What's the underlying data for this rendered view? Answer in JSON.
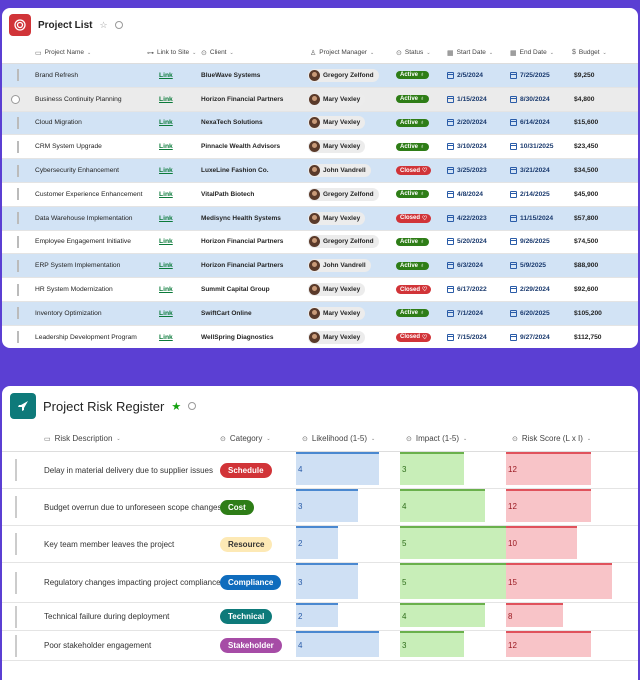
{
  "project_list": {
    "title": "Project List",
    "columns": [
      "Project Name",
      "Link to Site",
      "Client",
      "Project Manager",
      "Status",
      "Start Date",
      "End Date",
      "Budget"
    ],
    "rows": [
      {
        "name": "Brand Refresh",
        "link": "Link",
        "client": "BlueWave Systems",
        "pm": "Gregory Zelfond",
        "status": "Active",
        "start": "2/5/2024",
        "end": "7/25/2025",
        "budget": "$9,250"
      },
      {
        "name": "Business Continuity Planning",
        "link": "Link",
        "client": "Horizon Financial Partners",
        "pm": "Mary Vexley",
        "status": "Active",
        "start": "1/15/2024",
        "end": "8/30/2024",
        "budget": "$4,800"
      },
      {
        "name": "Cloud Migration",
        "link": "Link",
        "client": "NexaTech Solutions",
        "pm": "Mary Vexley",
        "status": "Active",
        "start": "2/20/2024",
        "end": "6/14/2024",
        "budget": "$15,600"
      },
      {
        "name": "CRM System Upgrade",
        "link": "Link",
        "client": "Pinnacle Wealth Advisors",
        "pm": "Mary Vexley",
        "status": "Active",
        "start": "3/10/2024",
        "end": "10/31/2025",
        "budget": "$23,450"
      },
      {
        "name": "Cybersecurity Enhancement",
        "link": "Link",
        "client": "LuxeLine Fashion Co.",
        "pm": "John Vandrell",
        "status": "Closed",
        "start": "3/25/2023",
        "end": "3/21/2024",
        "budget": "$34,500"
      },
      {
        "name": "Customer Experience Enhancement",
        "link": "Link",
        "client": "VitalPath Biotech",
        "pm": "Gregory Zelfond",
        "status": "Active",
        "start": "4/8/2024",
        "end": "2/14/2025",
        "budget": "$45,900"
      },
      {
        "name": "Data Warehouse Implementation",
        "link": "Link",
        "client": "Medisync Health Systems",
        "pm": "Mary Vexley",
        "status": "Closed",
        "start": "4/22/2023",
        "end": "11/15/2024",
        "budget": "$57,800"
      },
      {
        "name": "Employee Engagement Initiative",
        "link": "Link",
        "client": "Horizon Financial Partners",
        "pm": "Gregory Zelfond",
        "status": "Active",
        "start": "5/20/2024",
        "end": "9/26/2025",
        "budget": "$74,500"
      },
      {
        "name": "ERP System Implementation",
        "link": "Link",
        "client": "Horizon Financial Partners",
        "pm": "John Vandrell",
        "status": "Active",
        "start": "6/3/2024",
        "end": "5/9/2025",
        "budget": "$88,900"
      },
      {
        "name": "HR System Modernization",
        "link": "Link",
        "client": "Summit Capital Group",
        "pm": "Mary Vexley",
        "status": "Closed",
        "start": "6/17/2022",
        "end": "2/29/2024",
        "budget": "$92,600"
      },
      {
        "name": "Inventory Optimization",
        "link": "Link",
        "client": "SwiftCart Online",
        "pm": "Mary Vexley",
        "status": "Active",
        "start": "7/1/2024",
        "end": "6/20/2025",
        "budget": "$105,200"
      },
      {
        "name": "Leadership Development Program",
        "link": "Link",
        "client": "WellSpring Diagnostics",
        "pm": "Mary Vexley",
        "status": "Closed",
        "start": "7/15/2024",
        "end": "9/27/2024",
        "budget": "$112,750"
      }
    ]
  },
  "risk_register": {
    "title": "Project Risk Register",
    "columns": [
      "Risk Description",
      "Category",
      "Likelihood (1-5)",
      "Impact (1-5)",
      "Risk Score (L x I)"
    ],
    "category_colors": {
      "Schedule": "#d13438",
      "Cost": "#2e7d17",
      "Resource": "#fde9b5",
      "Compliance": "#0f6cbd",
      "Technical": "#0e7a7a",
      "Stakeholder": "#a64ca6"
    },
    "rows": [
      {
        "desc": "Delay in material delivery due to supplier issues",
        "category": "Schedule",
        "likelihood": 4,
        "impact": 3,
        "score": 12
      },
      {
        "desc": "Budget overrun due to unforeseen scope changes",
        "category": "Cost",
        "likelihood": 3,
        "impact": 4,
        "score": 12
      },
      {
        "desc": "Key team member leaves the project",
        "category": "Resource",
        "likelihood": 2,
        "impact": 5,
        "score": 10
      },
      {
        "desc": "Regulatory changes impacting project compliance",
        "category": "Compliance",
        "likelihood": 3,
        "impact": 5,
        "score": 15
      },
      {
        "desc": "Technical failure during deployment",
        "category": "Technical",
        "likelihood": 2,
        "impact": 4,
        "score": 8
      },
      {
        "desc": "Poor stakeholder engagement",
        "category": "Stakeholder",
        "likelihood": 4,
        "impact": 3,
        "score": 12
      }
    ]
  }
}
